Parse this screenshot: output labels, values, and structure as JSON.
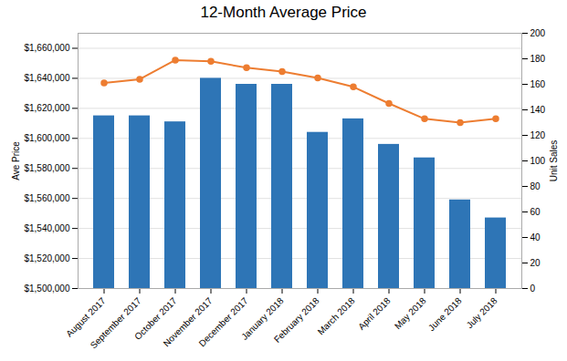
{
  "chart_data": {
    "type": "bar",
    "title": "12-Month Average Price",
    "categories": [
      "August 2017",
      "September 2017",
      "October 2017",
      "November 2017",
      "December 2017",
      "January 2018",
      "February 2018",
      "March 2018",
      "April 2018",
      "May 2018",
      "June 2018",
      "July 2018"
    ],
    "series": [
      {
        "type": "bar",
        "color": "#2E75B6",
        "values": [
          1615000,
          1615000,
          1611000,
          1640000,
          1636000,
          1636000,
          1604000,
          1613000,
          1596000,
          1587000,
          1559000,
          1547000
        ]
      },
      {
        "type": "line",
        "axis": "y2",
        "color": "#ED7D31",
        "marker": "circle",
        "values": [
          161,
          164,
          179,
          178,
          173,
          170,
          165,
          158,
          145,
          133,
          130,
          133
        ]
      }
    ],
    "ylabel": "Ave Price",
    "y2label": "Unit Sales",
    "ylim": [
      1500000,
      1670000
    ],
    "yticks": [
      {
        "value": 1500000,
        "label": "$1,500,000"
      },
      {
        "value": 1520000,
        "label": "$1,520,000"
      },
      {
        "value": 1540000,
        "label": "$1,540,000"
      },
      {
        "value": 1560000,
        "label": "$1,560,000"
      },
      {
        "value": 1580000,
        "label": "$1,580,000"
      },
      {
        "value": 1600000,
        "label": "$1,600,000"
      },
      {
        "value": 1620000,
        "label": "$1,620,000"
      },
      {
        "value": 1640000,
        "label": "$1,640,000"
      },
      {
        "value": 1660000,
        "label": "$1,660,000"
      }
    ],
    "y2lim": [
      0,
      200
    ],
    "y2ticks": [
      0,
      20,
      40,
      60,
      80,
      100,
      120,
      140,
      160,
      180,
      200
    ],
    "grid": true
  }
}
